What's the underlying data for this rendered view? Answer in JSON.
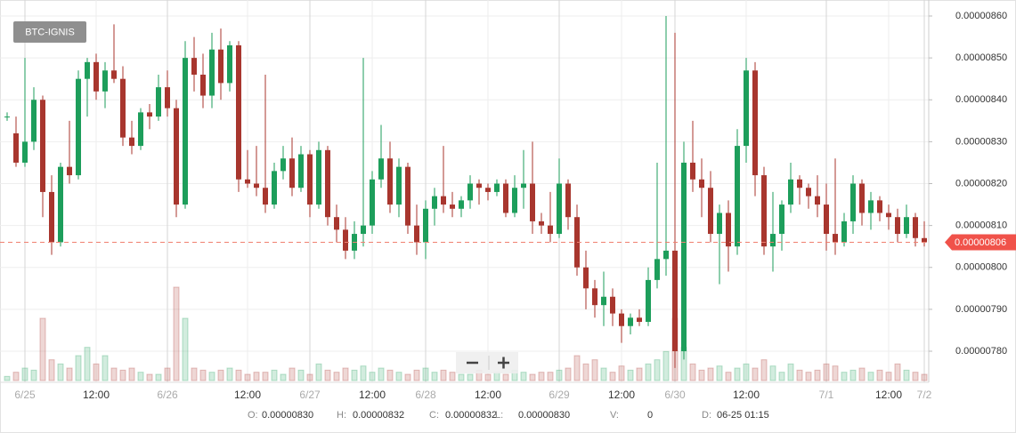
{
  "chart_data": {
    "type": "candlestick",
    "symbol": "BTC-IGNIS",
    "categories": [
      null,
      null,
      "6/25",
      null,
      null,
      null,
      null,
      null,
      null,
      null,
      "12:00",
      null,
      null,
      null,
      null,
      null,
      null,
      null,
      "6/26",
      null,
      null,
      null,
      null,
      null,
      null,
      null,
      null,
      "12:00",
      null,
      null,
      null,
      null,
      null,
      null,
      "6/27",
      null,
      null,
      null,
      null,
      null,
      null,
      "12:00",
      null,
      null,
      null,
      null,
      null,
      "6/28",
      null,
      null,
      null,
      null,
      null,
      null,
      "12:00",
      null,
      null,
      null,
      null,
      null,
      null,
      null,
      "6/29",
      null,
      null,
      null,
      null,
      null,
      null,
      "12:00",
      null,
      null,
      null,
      null,
      null,
      "6/30",
      null,
      null,
      null,
      null,
      null,
      null,
      null,
      "12:00",
      null,
      null,
      null,
      null,
      null,
      null,
      null,
      null,
      "7/1",
      null,
      null,
      null,
      null,
      null,
      null,
      "12:00",
      null,
      null,
      null,
      "7/2"
    ],
    "open": [
      8.36e-06,
      8.32e-06,
      8.25e-06,
      8.3e-06,
      8.4e-06,
      8.18e-06,
      8.06e-06,
      8.24e-06,
      8.22e-06,
      8.45e-06,
      8.49e-06,
      8.42e-06,
      8.47e-06,
      8.45e-06,
      8.31e-06,
      8.29e-06,
      8.37e-06,
      8.36e-06,
      8.43e-06,
      8.38e-06,
      8.15e-06,
      8.5e-06,
      8.46e-06,
      8.41e-06,
      8.52e-06,
      8.44e-06,
      8.53e-06,
      8.21e-06,
      8.2e-06,
      8.19e-06,
      8.15e-06,
      8.23e-06,
      8.26e-06,
      8.19e-06,
      8.27e-06,
      8.15e-06,
      8.28e-06,
      8.12e-06,
      8.09e-06,
      8.04e-06,
      8.08e-06,
      8.1e-06,
      8.21e-06,
      8.26e-06,
      8.15e-06,
      8.24e-06,
      8.1e-06,
      8.06e-06,
      8.14e-06,
      8.17e-06,
      8.15e-06,
      8.14e-06,
      8.16e-06,
      8.2e-06,
      8.19e-06,
      8.18e-06,
      8.2e-06,
      8.13e-06,
      8.19e-06,
      8.2e-06,
      8.11e-06,
      8.1e-06,
      8.08e-06,
      8.2e-06,
      8.12e-06,
      8e-06,
      7.95e-06,
      7.91e-06,
      7.93e-06,
      7.89e-06,
      7.86e-06,
      7.88e-06,
      7.87e-06,
      7.97e-06,
      8.02e-06,
      8.04e-06,
      7.8e-06,
      8.25e-06,
      8.21e-06,
      8.19e-06,
      8.08e-06,
      8.13e-06,
      8.05e-06,
      8.29e-06,
      8.47e-06,
      8.22e-06,
      8.05e-06,
      8.08e-06,
      8.15e-06,
      8.21e-06,
      8.19e-06,
      8.17e-06,
      8.15e-06,
      8.08e-06,
      8.06e-06,
      8.11e-06,
      8.2e-06,
      8.13e-06,
      8.16e-06,
      8.13e-06,
      8.12e-06,
      8.08e-06,
      8.12e-06,
      8.07e-06
    ],
    "high": [
      8.37e-06,
      8.36e-06,
      8.5e-06,
      8.43e-06,
      8.41e-06,
      8.22e-06,
      8.25e-06,
      8.35e-06,
      8.47e-06,
      8.5e-06,
      8.51e-06,
      8.49e-06,
      8.58e-06,
      8.48e-06,
      8.35e-06,
      8.38e-06,
      8.39e-06,
      8.46e-06,
      8.47e-06,
      8.4e-06,
      8.54e-06,
      8.55e-06,
      8.51e-06,
      8.56e-06,
      8.57e-06,
      8.54e-06,
      8.54e-06,
      8.28e-06,
      8.29e-06,
      8.46e-06,
      8.25e-06,
      8.29e-06,
      8.31e-06,
      8.29e-06,
      8.28e-06,
      8.3e-06,
      8.29e-06,
      8.15e-06,
      8.12e-06,
      8.11e-06,
      8.5e-06,
      8.23e-06,
      8.34e-06,
      8.3e-06,
      8.26e-06,
      8.25e-06,
      8.15e-06,
      8.16e-06,
      8.19e-06,
      8.29e-06,
      8.18e-06,
      8.17e-06,
      8.22e-06,
      8.21e-06,
      8.2e-06,
      8.21e-06,
      8.21e-06,
      8.22e-06,
      8.28e-06,
      8.3e-06,
      8.13e-06,
      8.18e-06,
      8.26e-06,
      8.21e-06,
      8.15e-06,
      8.04e-06,
      7.97e-06,
      7.99e-06,
      7.95e-06,
      7.9e-06,
      7.89e-06,
      7.9e-06,
      8e-06,
      8.25e-06,
      8.6e-06,
      8.56e-06,
      8.3e-06,
      8.35e-06,
      8.26e-06,
      8.23e-06,
      8.15e-06,
      8.16e-06,
      8.33e-06,
      8.5e-06,
      8.49e-06,
      8.24e-06,
      8.18e-06,
      8.16e-06,
      8.25e-06,
      8.22e-06,
      8.2e-06,
      8.22e-06,
      8.2e-06,
      8.26e-06,
      8.13e-06,
      8.22e-06,
      8.21e-06,
      8.18e-06,
      8.17e-06,
      8.15e-06,
      8.14e-06,
      8.15e-06,
      8.13e-06,
      8.11e-06
    ],
    "low": [
      8.35e-06,
      8.24e-06,
      8.24e-06,
      8.28e-06,
      8.12e-06,
      8.03e-06,
      8.05e-06,
      8.2e-06,
      8.21e-06,
      8.36e-06,
      8.4e-06,
      8.38e-06,
      8.44e-06,
      8.29e-06,
      8.27e-06,
      8.28e-06,
      8.33e-06,
      8.35e-06,
      8.36e-06,
      8.12e-06,
      8.14e-06,
      8.42e-06,
      8.38e-06,
      8.38e-06,
      8.4e-06,
      8.42e-06,
      8.18e-06,
      8.19e-06,
      8.17e-06,
      8.13e-06,
      8.14e-06,
      8.21e-06,
      8.17e-06,
      8.18e-06,
      8.12e-06,
      8.14e-06,
      8.1e-06,
      8.06e-06,
      8.02e-06,
      8.02e-06,
      8.05e-06,
      8.08e-06,
      8.19e-06,
      8.13e-06,
      8.12e-06,
      8.08e-06,
      8.03e-06,
      8.02e-06,
      8.1e-06,
      8.13e-06,
      8.12e-06,
      8.12e-06,
      8.14e-06,
      8.15e-06,
      8.16e-06,
      8.17e-06,
      8.12e-06,
      8.12e-06,
      8.14e-06,
      8.08e-06,
      8.08e-06,
      8.06e-06,
      8.07e-06,
      8.09e-06,
      7.98e-06,
      7.9e-06,
      7.88e-06,
      7.86e-06,
      7.86e-06,
      7.82e-06,
      7.84e-06,
      7.86e-06,
      7.86e-06,
      7.95e-06,
      7.98e-06,
      7.76e-06,
      7.78e-06,
      8.18e-06,
      8.12e-06,
      8.06e-06,
      7.96e-06,
      7.99e-06,
      8.03e-06,
      8.25e-06,
      8.17e-06,
      8.03e-06,
      7.99e-06,
      8.04e-06,
      8.13e-06,
      8.15e-06,
      8.14e-06,
      8.12e-06,
      8.04e-06,
      8.03e-06,
      8.05e-06,
      8.08e-06,
      8.1e-06,
      8.09e-06,
      8.11e-06,
      8.09e-06,
      8.06e-06,
      8.07e-06,
      8.05e-06,
      8.05e-06
    ],
    "close": [
      8.36e-06,
      8.25e-06,
      8.3e-06,
      8.4e-06,
      8.18e-06,
      8.06e-06,
      8.24e-06,
      8.22e-06,
      8.45e-06,
      8.49e-06,
      8.42e-06,
      8.47e-06,
      8.45e-06,
      8.31e-06,
      8.29e-06,
      8.37e-06,
      8.36e-06,
      8.43e-06,
      8.38e-06,
      8.15e-06,
      8.5e-06,
      8.46e-06,
      8.41e-06,
      8.52e-06,
      8.44e-06,
      8.53e-06,
      8.21e-06,
      8.2e-06,
      8.19e-06,
      8.15e-06,
      8.23e-06,
      8.26e-06,
      8.19e-06,
      8.27e-06,
      8.15e-06,
      8.28e-06,
      8.12e-06,
      8.09e-06,
      8.04e-06,
      8.08e-06,
      8.1e-06,
      8.21e-06,
      8.26e-06,
      8.15e-06,
      8.24e-06,
      8.1e-06,
      8.06e-06,
      8.14e-06,
      8.17e-06,
      8.15e-06,
      8.14e-06,
      8.16e-06,
      8.2e-06,
      8.19e-06,
      8.18e-06,
      8.2e-06,
      8.13e-06,
      8.19e-06,
      8.2e-06,
      8.11e-06,
      8.1e-06,
      8.08e-06,
      8.2e-06,
      8.12e-06,
      8e-06,
      7.95e-06,
      7.91e-06,
      7.93e-06,
      7.89e-06,
      7.86e-06,
      7.88e-06,
      7.87e-06,
      7.97e-06,
      8.02e-06,
      8.04e-06,
      7.8e-06,
      8.25e-06,
      8.21e-06,
      8.19e-06,
      8.08e-06,
      8.13e-06,
      8.05e-06,
      8.29e-06,
      8.47e-06,
      8.22e-06,
      8.05e-06,
      8.08e-06,
      8.15e-06,
      8.21e-06,
      8.19e-06,
      8.17e-06,
      8.15e-06,
      8.08e-06,
      8.06e-06,
      8.11e-06,
      8.2e-06,
      8.13e-06,
      8.16e-06,
      8.13e-06,
      8.12e-06,
      8.08e-06,
      8.12e-06,
      8.07e-06,
      8.06e-06
    ],
    "volume": [
      2,
      4,
      6,
      5,
      30,
      10,
      8,
      6,
      12,
      16,
      8,
      12,
      6,
      5,
      6,
      4,
      3,
      3,
      6,
      45,
      30,
      6,
      5,
      4,
      5,
      6,
      5,
      3,
      4,
      4,
      5,
      3,
      6,
      5,
      3,
      8,
      5,
      4,
      6,
      5,
      7,
      4,
      6,
      5,
      4,
      3,
      5,
      6,
      4,
      5,
      4,
      3,
      3,
      5,
      3,
      4,
      3,
      5,
      4,
      3,
      4,
      4,
      5,
      6,
      12,
      8,
      10,
      6,
      4,
      7,
      5,
      6,
      8,
      10,
      14,
      30,
      16,
      8,
      5,
      6,
      7,
      4,
      6,
      8,
      6,
      10,
      7,
      4,
      8,
      5,
      4,
      5,
      8,
      7,
      4,
      5,
      6,
      4,
      5,
      4,
      8,
      5,
      4,
      3
    ],
    "up_color": "#1d9e5b",
    "down_color": "#a8362e",
    "ylim": [
      7.73e-06,
      8.6e-06
    ],
    "yticks": [
      {
        "value": 7.8e-06,
        "label": "0.00000780"
      },
      {
        "value": 7.9e-06,
        "label": "0.00000790"
      },
      {
        "value": 8e-06,
        "label": "0.00000800"
      },
      {
        "value": 8.1e-06,
        "label": "0.00000810"
      },
      {
        "value": 8.2e-06,
        "label": "0.00000820"
      },
      {
        "value": 8.3e-06,
        "label": "0.00000830"
      },
      {
        "value": 8.4e-06,
        "label": "0.00000840"
      },
      {
        "value": 8.5e-06,
        "label": "0.00000850"
      },
      {
        "value": 8.6e-06,
        "label": "0.00000860"
      }
    ],
    "last_price": {
      "value": 8.06e-06,
      "label": "0.00000806"
    },
    "grid": true,
    "info": [
      {
        "label": "O:",
        "value": "0.00000830"
      },
      {
        "label": "H:",
        "value": "0.00000832"
      },
      {
        "label": "C:",
        "value": "0.00000832"
      },
      {
        "label": "L:",
        "value": "0.00000830"
      },
      {
        "label": "V:",
        "value": "0"
      },
      {
        "label": "D:",
        "value": "06-25 01:15"
      }
    ]
  }
}
